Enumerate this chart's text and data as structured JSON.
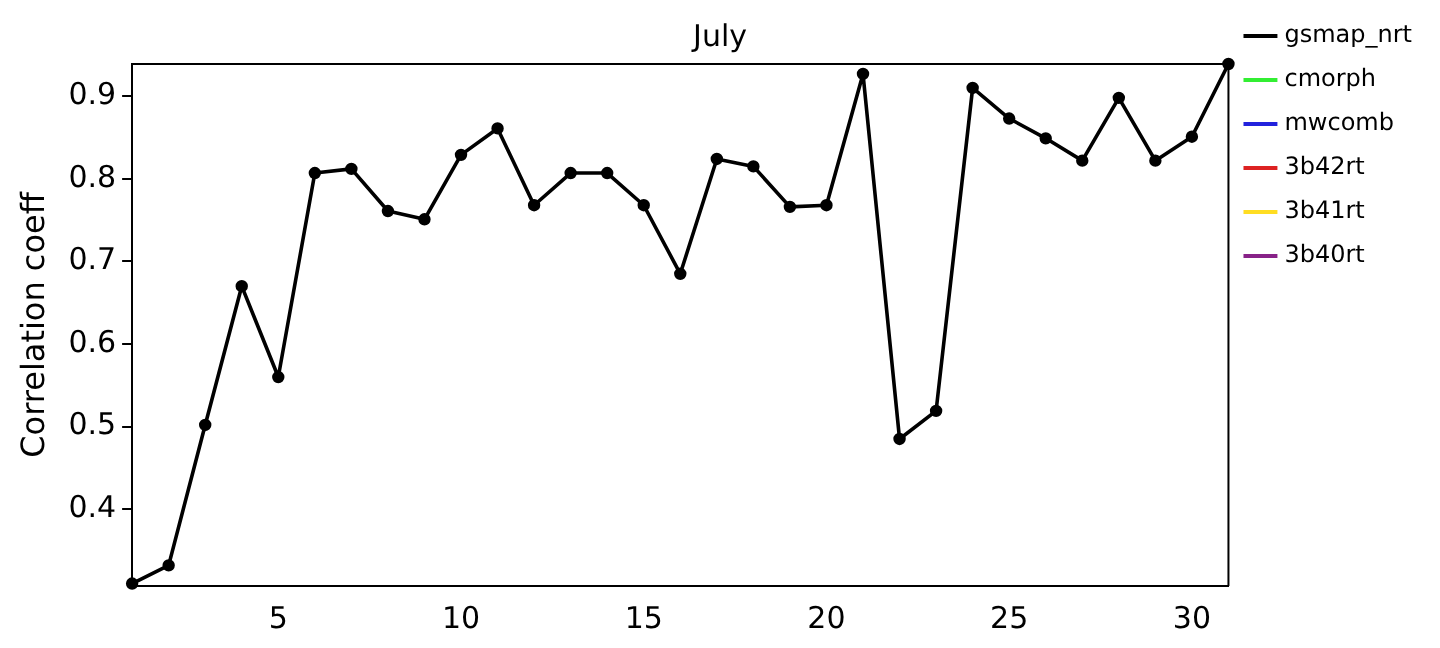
{
  "chart_data": {
    "type": "line",
    "title": "July",
    "ylabel": "Correlation coeff",
    "x": [
      1,
      2,
      3,
      4,
      5,
      6,
      7,
      8,
      9,
      10,
      11,
      12,
      13,
      14,
      15,
      16,
      17,
      18,
      19,
      20,
      21,
      22,
      23,
      24,
      25,
      26,
      27,
      28,
      29,
      30,
      31
    ],
    "series": [
      {
        "name": "gsmap_nrt",
        "color": "#000000",
        "values": [
          0.31,
          0.332,
          0.502,
          0.67,
          0.56,
          0.807,
          0.812,
          0.761,
          0.751,
          0.829,
          0.861,
          0.768,
          0.807,
          0.807,
          0.768,
          0.685,
          0.824,
          0.815,
          0.766,
          0.768,
          0.927,
          0.485,
          0.519,
          0.91,
          0.873,
          0.849,
          0.822,
          0.898,
          0.822,
          0.851,
          0.939
        ]
      },
      {
        "name": "cmorph",
        "color": "#33ee33",
        "values": [
          null,
          null,
          null,
          null,
          null,
          null,
          null,
          null,
          null,
          null,
          null,
          null,
          null,
          null,
          null,
          null,
          null,
          null,
          null,
          null,
          null,
          null,
          null,
          null,
          null,
          null,
          null,
          null,
          null,
          null,
          null
        ]
      },
      {
        "name": "mwcomb",
        "color": "#2222dd",
        "values": [
          null,
          null,
          null,
          null,
          null,
          null,
          null,
          null,
          null,
          null,
          null,
          null,
          null,
          null,
          null,
          null,
          null,
          null,
          null,
          null,
          null,
          null,
          null,
          null,
          null,
          null,
          null,
          null,
          null,
          null,
          null
        ]
      },
      {
        "name": "3b42rt",
        "color": "#dd2222",
        "values": [
          null,
          null,
          null,
          null,
          null,
          null,
          null,
          null,
          null,
          null,
          null,
          null,
          null,
          null,
          null,
          null,
          null,
          null,
          null,
          null,
          null,
          null,
          null,
          null,
          null,
          null,
          null,
          null,
          null,
          null,
          null
        ]
      },
      {
        "name": "3b41rt",
        "color": "#ffdd22",
        "values": [
          null,
          null,
          null,
          null,
          null,
          null,
          null,
          null,
          null,
          null,
          null,
          null,
          null,
          null,
          null,
          null,
          null,
          null,
          null,
          null,
          null,
          null,
          null,
          null,
          null,
          null,
          null,
          null,
          null,
          null,
          null
        ]
      },
      {
        "name": "3b40rt",
        "color": "#882288",
        "values": [
          null,
          null,
          null,
          null,
          null,
          null,
          null,
          null,
          null,
          null,
          null,
          null,
          null,
          null,
          null,
          null,
          null,
          null,
          null,
          null,
          null,
          null,
          null,
          null,
          null,
          null,
          null,
          null,
          null,
          null,
          null
        ]
      }
    ],
    "xlim": [
      1,
      31
    ],
    "xticks": [
      5,
      10,
      15,
      20,
      25,
      30
    ],
    "ylim": [
      0.307,
      0.939
    ],
    "yticks": [
      0.4,
      0.5,
      0.6,
      0.7,
      0.8,
      0.9
    ],
    "grid": false,
    "legend": "right",
    "marker": "circle",
    "line_style": "solid"
  }
}
